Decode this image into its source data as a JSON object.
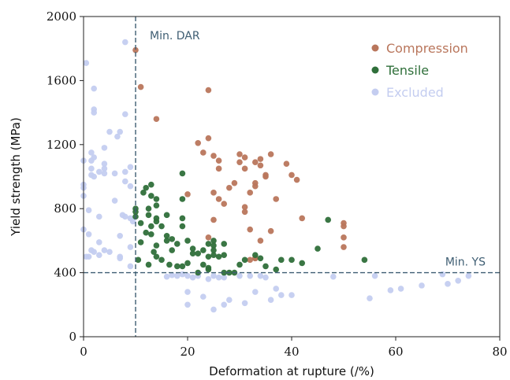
{
  "chart_data": {
    "type": "scatter",
    "title": "",
    "xlabel": "Deformation at rupture (/%)",
    "ylabel": "Yield strength (MPa)",
    "xlim": [
      0,
      80
    ],
    "ylim": [
      0,
      2000
    ],
    "xticks": [
      0,
      20,
      40,
      60,
      80
    ],
    "yticks": [
      0,
      400,
      800,
      1200,
      1600,
      2000
    ],
    "grid": false,
    "legend_position": "top-right",
    "reference_lines": {
      "vertical": {
        "x": 10,
        "label": "Min. DAR"
      },
      "horizontal": {
        "y": 400,
        "label": "Min. YS"
      },
      "color": "#3f5e73"
    },
    "series": [
      {
        "name": "Compression",
        "color": "#b9765c",
        "points": [
          [
            10,
            1790
          ],
          [
            11,
            1560
          ],
          [
            14,
            1360
          ],
          [
            24,
            1540
          ],
          [
            22,
            1210
          ],
          [
            23,
            1150
          ],
          [
            24,
            1240
          ],
          [
            25,
            1130
          ],
          [
            26,
            1050
          ],
          [
            26,
            1100
          ],
          [
            20,
            890
          ],
          [
            25,
            900
          ],
          [
            25,
            730
          ],
          [
            26,
            860
          ],
          [
            27,
            830
          ],
          [
            28,
            930
          ],
          [
            29,
            960
          ],
          [
            30,
            1140
          ],
          [
            30,
            1090
          ],
          [
            31,
            1120
          ],
          [
            31,
            1050
          ],
          [
            32,
            900
          ],
          [
            33,
            1090
          ],
          [
            33,
            940
          ],
          [
            33,
            960
          ],
          [
            34,
            1110
          ],
          [
            34,
            1070
          ],
          [
            35,
            1010
          ],
          [
            35,
            1000
          ],
          [
            36,
            1140
          ],
          [
            37,
            860
          ],
          [
            39,
            1080
          ],
          [
            40,
            1010
          ],
          [
            41,
            980
          ],
          [
            42,
            740
          ],
          [
            50,
            710
          ],
          [
            50,
            690
          ],
          [
            50,
            620
          ],
          [
            50,
            560
          ],
          [
            24,
            620
          ],
          [
            31,
            810
          ],
          [
            31,
            780
          ],
          [
            32,
            670
          ],
          [
            33,
            490
          ],
          [
            34,
            600
          ],
          [
            36,
            660
          ],
          [
            32,
            480
          ],
          [
            33,
            490
          ]
        ]
      },
      {
        "name": "Tensile",
        "color": "#2f6f3a",
        "points": [
          [
            10,
            800
          ],
          [
            10,
            780
          ],
          [
            10,
            750
          ],
          [
            11,
            710
          ],
          [
            10.5,
            480
          ],
          [
            11,
            590
          ],
          [
            11.5,
            900
          ],
          [
            12,
            930
          ],
          [
            12,
            650
          ],
          [
            12.5,
            800
          ],
          [
            12.5,
            760
          ],
          [
            12.5,
            450
          ],
          [
            13,
            950
          ],
          [
            13,
            880
          ],
          [
            13,
            690
          ],
          [
            13,
            640
          ],
          [
            13.5,
            530
          ],
          [
            14,
            860
          ],
          [
            14,
            820
          ],
          [
            14,
            740
          ],
          [
            14,
            720
          ],
          [
            14,
            570
          ],
          [
            14,
            500
          ],
          [
            15,
            690
          ],
          [
            15,
            480
          ],
          [
            16,
            760
          ],
          [
            16,
            630
          ],
          [
            16,
            600
          ],
          [
            16.5,
            450
          ],
          [
            17,
            610
          ],
          [
            17,
            540
          ],
          [
            18,
            580
          ],
          [
            18,
            440
          ],
          [
            19,
            1020
          ],
          [
            19,
            860
          ],
          [
            19,
            740
          ],
          [
            19,
            690
          ],
          [
            19,
            440
          ],
          [
            20,
            460
          ],
          [
            20,
            600
          ],
          [
            21,
            550
          ],
          [
            21,
            520
          ],
          [
            22,
            520
          ],
          [
            22,
            400
          ],
          [
            23,
            540
          ],
          [
            23,
            450
          ],
          [
            24,
            580
          ],
          [
            24,
            500
          ],
          [
            24,
            430
          ],
          [
            24,
            420
          ],
          [
            25,
            600
          ],
          [
            25,
            570
          ],
          [
            25,
            540
          ],
          [
            25,
            510
          ],
          [
            26,
            500
          ],
          [
            27,
            580
          ],
          [
            27,
            510
          ],
          [
            27,
            400
          ],
          [
            28,
            400
          ],
          [
            29,
            400
          ],
          [
            30,
            450
          ],
          [
            31,
            480
          ],
          [
            33,
            510
          ],
          [
            34,
            490
          ],
          [
            35,
            440
          ],
          [
            37,
            420
          ],
          [
            38,
            480
          ],
          [
            40,
            480
          ],
          [
            42,
            460
          ],
          [
            45,
            550
          ],
          [
            47,
            730
          ],
          [
            54,
            480
          ]
        ]
      },
      {
        "name": "Excluded",
        "color": "#c4cdf0",
        "points": [
          [
            0,
            1100
          ],
          [
            0,
            950
          ],
          [
            0,
            930
          ],
          [
            0,
            880
          ],
          [
            0,
            670
          ],
          [
            0.5,
            1710
          ],
          [
            0.5,
            500
          ],
          [
            1,
            790
          ],
          [
            1,
            640
          ],
          [
            1,
            500
          ],
          [
            1.5,
            1150
          ],
          [
            1.5,
            1100
          ],
          [
            1.5,
            1050
          ],
          [
            1.5,
            1010
          ],
          [
            1.5,
            540
          ],
          [
            2,
            1550
          ],
          [
            2,
            1420
          ],
          [
            2,
            1400
          ],
          [
            2,
            1120
          ],
          [
            2,
            1000
          ],
          [
            2,
            530
          ],
          [
            3,
            1030
          ],
          [
            3,
            750
          ],
          [
            3,
            590
          ],
          [
            3,
            510
          ],
          [
            4,
            1180
          ],
          [
            4,
            1080
          ],
          [
            4,
            1050
          ],
          [
            4,
            1020
          ],
          [
            4,
            540
          ],
          [
            5,
            1280
          ],
          [
            5,
            530
          ],
          [
            6,
            1020
          ],
          [
            6,
            850
          ],
          [
            6.5,
            1250
          ],
          [
            7,
            1280
          ],
          [
            7,
            630
          ],
          [
            7,
            500
          ],
          [
            7,
            490
          ],
          [
            7.5,
            760
          ],
          [
            8,
            1840
          ],
          [
            8,
            1390
          ],
          [
            8,
            1030
          ],
          [
            8,
            970
          ],
          [
            8,
            750
          ],
          [
            9,
            1060
          ],
          [
            9,
            940
          ],
          [
            9,
            740
          ],
          [
            9,
            560
          ],
          [
            9,
            440
          ],
          [
            9.5,
            720
          ],
          [
            16,
            375
          ],
          [
            17,
            385
          ],
          [
            18,
            380
          ],
          [
            19,
            390
          ],
          [
            20,
            380
          ],
          [
            20,
            280
          ],
          [
            20,
            200
          ],
          [
            21,
            370
          ],
          [
            22,
            380
          ],
          [
            23,
            250
          ],
          [
            24,
            360
          ],
          [
            25,
            380
          ],
          [
            25,
            170
          ],
          [
            26,
            370
          ],
          [
            27,
            200
          ],
          [
            27,
            370
          ],
          [
            28,
            230
          ],
          [
            30,
            380
          ],
          [
            31,
            210
          ],
          [
            32,
            380
          ],
          [
            33,
            280
          ],
          [
            34,
            380
          ],
          [
            35,
            370
          ],
          [
            36,
            230
          ],
          [
            37,
            300
          ],
          [
            38,
            260
          ],
          [
            40,
            260
          ],
          [
            48,
            375
          ],
          [
            55,
            240
          ],
          [
            56,
            380
          ],
          [
            59,
            290
          ],
          [
            61,
            300
          ],
          [
            65,
            320
          ],
          [
            69,
            390
          ],
          [
            70,
            330
          ],
          [
            72,
            350
          ],
          [
            74,
            380
          ]
        ]
      }
    ]
  }
}
